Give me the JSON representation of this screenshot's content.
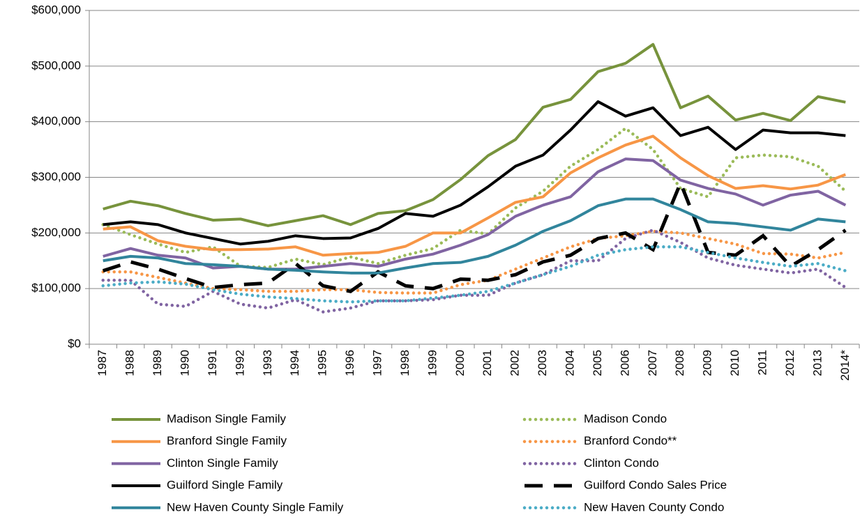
{
  "chart_data": {
    "type": "line",
    "categories": [
      "1987",
      "1988",
      "1989",
      "1990",
      "1991",
      "1992",
      "1993",
      "1994",
      "1995",
      "1996",
      "1997",
      "1998",
      "1999",
      "2000",
      "2001",
      "2002",
      "2003",
      "2004",
      "2005",
      "2006",
      "2007",
      "2008",
      "2009",
      "2010",
      "2011",
      "2012",
      "2013",
      "2014*"
    ],
    "ylim": [
      0,
      600000
    ],
    "yticks": [
      {
        "value": 0,
        "label": "$0"
      },
      {
        "value": 100000,
        "label": "$100,000"
      },
      {
        "value": 200000,
        "label": "$200,000"
      },
      {
        "value": 300000,
        "label": "$300,000"
      },
      {
        "value": 400000,
        "label": "$400,000"
      },
      {
        "value": 500000,
        "label": "$500,000"
      },
      {
        "value": 600000,
        "label": "$600,000"
      }
    ],
    "grid": true,
    "legend": "bottom",
    "series": [
      {
        "name": "Madison Single Family",
        "color": "#77933c",
        "dash": "solid",
        "values": [
          243000,
          257000,
          249000,
          235000,
          223000,
          225000,
          213000,
          222000,
          231000,
          215000,
          235000,
          240000,
          260000,
          296000,
          339000,
          368000,
          426000,
          440000,
          490000,
          505000,
          539000,
          425000,
          446000,
          403000,
          415000,
          402000,
          445000,
          435000
        ]
      },
      {
        "name": "Madison Condo",
        "color": "#9bbb59",
        "dash": "dot",
        "values": [
          215000,
          197000,
          180000,
          165000,
          175000,
          140000,
          138000,
          153000,
          143000,
          157000,
          145000,
          160000,
          172000,
          205000,
          198000,
          245000,
          275000,
          320000,
          350000,
          388000,
          350000,
          280000,
          265000,
          335000,
          340000,
          337000,
          320000,
          275000
        ]
      },
      {
        "name": "Branford Single Family",
        "color": "#f79646",
        "dash": "solid",
        "values": [
          207000,
          211000,
          186000,
          176000,
          170000,
          170000,
          171000,
          175000,
          160000,
          163000,
          165000,
          176000,
          200000,
          200000,
          227000,
          255000,
          265000,
          308000,
          335000,
          358000,
          374000,
          335000,
          303000,
          280000,
          285000,
          279000,
          286000,
          305000
        ]
      },
      {
        "name": "Branford Condo**",
        "color": "#f79646",
        "dash": "dot",
        "values": [
          130000,
          130000,
          120000,
          110000,
          100000,
          98000,
          95000,
          95000,
          98000,
          98000,
          93000,
          92000,
          92000,
          107000,
          115000,
          135000,
          155000,
          175000,
          190000,
          195000,
          203000,
          200000,
          190000,
          180000,
          163000,
          162000,
          155000,
          165000
        ]
      },
      {
        "name": "Clinton Single Family",
        "color": "#8064a2",
        "dash": "solid",
        "values": [
          158000,
          172000,
          160000,
          155000,
          137000,
          140000,
          135000,
          135000,
          140000,
          145000,
          140000,
          153000,
          162000,
          178000,
          197000,
          230000,
          250000,
          265000,
          310000,
          333000,
          330000,
          295000,
          280000,
          270000,
          250000,
          268000,
          275000,
          250000
        ]
      },
      {
        "name": "Clinton Condo",
        "color": "#8064a2",
        "dash": "dot",
        "values": [
          115000,
          115000,
          72000,
          68000,
          95000,
          72000,
          65000,
          80000,
          58000,
          65000,
          78000,
          78000,
          80000,
          88000,
          88000,
          110000,
          125000,
          150000,
          150000,
          190000,
          205000,
          183000,
          155000,
          142000,
          135000,
          128000,
          135000,
          102000
        ]
      },
      {
        "name": "Guilford Single Family",
        "color": "#000000",
        "dash": "solid",
        "values": [
          215000,
          220000,
          215000,
          200000,
          190000,
          180000,
          185000,
          195000,
          190000,
          191000,
          208000,
          235000,
          230000,
          250000,
          283000,
          320000,
          340000,
          385000,
          436000,
          410000,
          425000,
          375000,
          390000,
          350000,
          385000,
          380000,
          380000,
          375000
        ]
      },
      {
        "name": "Guilford Condo Sales Price",
        "color": "#000000",
        "dash": "dash",
        "values": [
          132000,
          148000,
          135000,
          118000,
          102000,
          107000,
          110000,
          145000,
          105000,
          95000,
          130000,
          105000,
          100000,
          117000,
          115000,
          125000,
          148000,
          160000,
          190000,
          200000,
          170000,
          290000,
          165000,
          160000,
          195000,
          140000,
          170000,
          205000
        ]
      },
      {
        "name": "New Haven County Single Family",
        "color": "#31859c",
        "dash": "solid",
        "values": [
          150000,
          158000,
          155000,
          145000,
          143000,
          140000,
          135000,
          133000,
          130000,
          128000,
          128000,
          137000,
          145000,
          147000,
          158000,
          178000,
          203000,
          222000,
          249000,
          261000,
          261000,
          242000,
          220000,
          217000,
          211000,
          205000,
          225000,
          220000
        ]
      },
      {
        "name": "New Haven County Condo",
        "color": "#4bacc6",
        "dash": "dot",
        "values": [
          105000,
          110000,
          112000,
          108000,
          98000,
          90000,
          85000,
          82000,
          78000,
          76000,
          78000,
          78000,
          83000,
          88000,
          95000,
          110000,
          125000,
          140000,
          160000,
          170000,
          175000,
          175000,
          165000,
          155000,
          147000,
          140000,
          145000,
          132000
        ]
      }
    ]
  }
}
